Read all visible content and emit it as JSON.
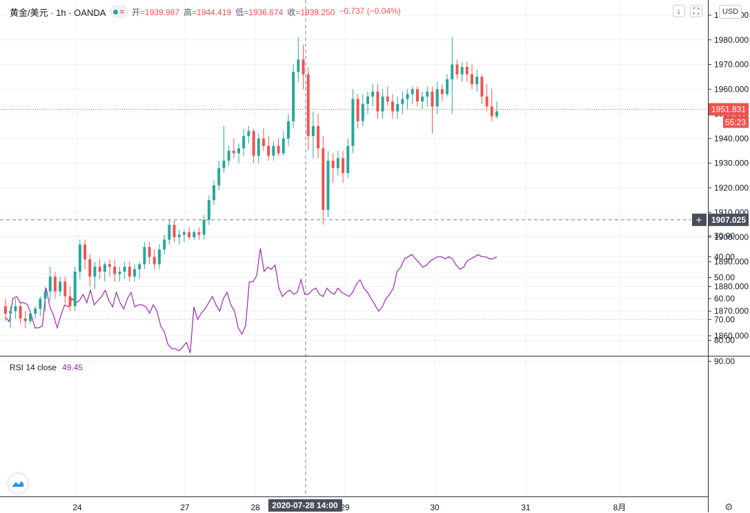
{
  "header": {
    "symbol": "黄金/美元 · 1h · OANDA",
    "open_label": "开",
    "open": "1939.987",
    "high_label": "高",
    "high": "1944.419",
    "low_label": "低",
    "low": "1936.674",
    "close_label": "收",
    "close": "1939.250",
    "change": "−0.737 (−0.04%)",
    "currency": "USD"
  },
  "price_tags": {
    "last": "1951.831",
    "countdown": "55:23",
    "crosshair": "1907.025"
  },
  "crosshair_time": "2020-07-28  14:00",
  "rsi": {
    "label": "RSI 14 close",
    "value": "49.45"
  },
  "icons": [
    "down-arrow-icon",
    "fullscreen-icon",
    "wave-icon",
    "tradingview-logo-icon",
    "gear-icon",
    "plus-icon"
  ],
  "colors": {
    "up": "#26a69a",
    "down": "#ef5350",
    "rsi_line": "#9c27b0",
    "rsi_band": "#f3e6fc"
  },
  "chart_data": [
    {
      "type": "candlestick",
      "title": "",
      "ylim": [
        1852,
        1990
      ],
      "y_ticks": [
        "1860.000",
        "1870.000",
        "1880.000",
        "1890.000",
        "1900.000",
        "1910.000",
        "1920.000",
        "1930.000",
        "1940.000",
        "1950.000",
        "1960.000",
        "1970.000",
        "1980.000",
        "1990.000"
      ],
      "x_ticks": [
        "24",
        "27",
        "28",
        "29",
        "30",
        "31",
        "8月"
      ],
      "ohlc": [
        [
          1872,
          1875,
          1866,
          1869
        ],
        [
          1869,
          1872,
          1863,
          1870
        ],
        [
          1870,
          1875,
          1867,
          1872
        ],
        [
          1872,
          1874,
          1865,
          1867
        ],
        [
          1867,
          1870,
          1863,
          1866
        ],
        [
          1866,
          1870,
          1865,
          1869
        ],
        [
          1869,
          1872,
          1867,
          1871
        ],
        [
          1871,
          1876,
          1868,
          1875
        ],
        [
          1875,
          1880,
          1870,
          1878
        ],
        [
          1878,
          1888,
          1874,
          1884
        ],
        [
          1884,
          1886,
          1875,
          1878
        ],
        [
          1878,
          1884,
          1876,
          1882
        ],
        [
          1882,
          1884,
          1873,
          1876
        ],
        [
          1876,
          1880,
          1870,
          1872
        ],
        [
          1872,
          1888,
          1870,
          1886
        ],
        [
          1886,
          1899,
          1883,
          1897
        ],
        [
          1897,
          1899,
          1887,
          1891
        ],
        [
          1891,
          1893,
          1880,
          1884
        ],
        [
          1884,
          1890,
          1879,
          1888
        ],
        [
          1888,
          1891,
          1883,
          1886
        ],
        [
          1886,
          1890,
          1882,
          1889
        ],
        [
          1889,
          1891,
          1884,
          1888
        ],
        [
          1888,
          1891,
          1882,
          1885
        ],
        [
          1885,
          1888,
          1882,
          1886
        ],
        [
          1886,
          1890,
          1883,
          1888
        ],
        [
          1888,
          1890,
          1882,
          1884
        ],
        [
          1884,
          1889,
          1882,
          1887
        ],
        [
          1887,
          1890,
          1883,
          1889
        ],
        [
          1889,
          1898,
          1887,
          1896
        ],
        [
          1896,
          1898,
          1889,
          1892
        ],
        [
          1892,
          1895,
          1887,
          1889
        ],
        [
          1889,
          1897,
          1887,
          1895
        ],
        [
          1895,
          1901,
          1893,
          1899
        ],
        [
          1899,
          1907,
          1897,
          1905
        ],
        [
          1905,
          1907,
          1898,
          1900
        ],
        [
          1900,
          1903,
          1897,
          1901
        ],
        [
          1901,
          1903,
          1898,
          1902
        ],
        [
          1902,
          1904,
          1899,
          1900
        ],
        [
          1900,
          1903,
          1899,
          1902
        ],
        [
          1902,
          1904,
          1899,
          1901
        ],
        [
          1901,
          1909,
          1899,
          1907
        ],
        [
          1907,
          1917,
          1905,
          1915
        ],
        [
          1915,
          1923,
          1913,
          1921
        ],
        [
          1921,
          1931,
          1919,
          1928
        ],
        [
          1928,
          1945,
          1926,
          1931
        ],
        [
          1931,
          1937,
          1929,
          1935
        ],
        [
          1935,
          1940,
          1932,
          1934
        ],
        [
          1934,
          1938,
          1930,
          1936
        ],
        [
          1936,
          1944,
          1933,
          1941
        ],
        [
          1941,
          1945,
          1938,
          1943
        ],
        [
          1943,
          1944,
          1930,
          1933
        ],
        [
          1933,
          1942,
          1930,
          1940
        ],
        [
          1940,
          1944,
          1935,
          1937
        ],
        [
          1937,
          1941,
          1931,
          1933
        ],
        [
          1933,
          1939,
          1931,
          1937
        ],
        [
          1937,
          1940,
          1933,
          1934
        ],
        [
          1934,
          1943,
          1933,
          1940
        ],
        [
          1940,
          1950,
          1937,
          1947
        ],
        [
          1947,
          1970,
          1944,
          1967
        ],
        [
          1967,
          1981,
          1963,
          1972
        ],
        [
          1972,
          1978,
          1960,
          1966
        ],
        [
          1966,
          1969,
          1935,
          1941
        ],
        [
          1941,
          1951,
          1932,
          1945
        ],
        [
          1945,
          1950,
          1932,
          1936
        ],
        [
          1936,
          1941,
          1905,
          1911
        ],
        [
          1911,
          1935,
          1908,
          1931
        ],
        [
          1931,
          1934,
          1922,
          1928
        ],
        [
          1928,
          1935,
          1925,
          1932
        ],
        [
          1932,
          1935,
          1922,
          1926
        ],
        [
          1926,
          1940,
          1924,
          1937
        ],
        [
          1937,
          1960,
          1934,
          1956
        ],
        [
          1956,
          1958,
          1944,
          1947
        ],
        [
          1947,
          1958,
          1945,
          1954
        ],
        [
          1954,
          1959,
          1950,
          1957
        ],
        [
          1957,
          1962,
          1953,
          1959
        ],
        [
          1959,
          1962,
          1948,
          1951
        ],
        [
          1951,
          1960,
          1948,
          1957
        ],
        [
          1957,
          1961,
          1953,
          1955
        ],
        [
          1955,
          1958,
          1948,
          1951
        ],
        [
          1951,
          1957,
          1948,
          1954
        ],
        [
          1954,
          1959,
          1950,
          1956
        ],
        [
          1956,
          1960,
          1952,
          1958
        ],
        [
          1958,
          1961,
          1954,
          1960
        ],
        [
          1960,
          1961,
          1953,
          1955
        ],
        [
          1955,
          1959,
          1952,
          1957
        ],
        [
          1957,
          1961,
          1953,
          1959
        ],
        [
          1959,
          1961,
          1942,
          1953
        ],
        [
          1953,
          1963,
          1950,
          1960
        ],
        [
          1960,
          1962,
          1955,
          1958
        ],
        [
          1958,
          1966,
          1957,
          1964
        ],
        [
          1964,
          1981,
          1950,
          1970
        ],
        [
          1970,
          1972,
          1964,
          1966
        ],
        [
          1966,
          1971,
          1963,
          1969
        ],
        [
          1969,
          1971,
          1963,
          1966
        ],
        [
          1966,
          1970,
          1960,
          1962
        ],
        [
          1962,
          1968,
          1959,
          1965
        ],
        [
          1965,
          1966,
          1954,
          1957
        ],
        [
          1957,
          1962,
          1951,
          1953
        ],
        [
          1953,
          1960,
          1947,
          1949
        ],
        [
          1949,
          1955,
          1948,
          1951
        ]
      ]
    },
    {
      "type": "line",
      "title": "",
      "ylim": [
        26,
        91
      ],
      "y_ticks": [
        "30.00",
        "40.00",
        "50.00",
        "60.00",
        "70.00",
        "80.00",
        "90.00"
      ],
      "series": [
        {
          "name": "",
          "values": [
            69,
            71,
            60,
            59,
            62,
            62,
            63,
            68,
            74,
            74,
            73,
            55,
            64,
            68,
            74,
            68,
            63,
            64,
            60,
            62,
            61,
            58,
            62,
            56,
            63,
            61,
            59,
            56,
            61,
            64,
            57,
            62,
            65,
            60,
            57,
            64,
            63,
            63,
            64,
            67,
            63,
            66,
            73,
            76,
            82,
            84,
            84,
            85,
            83,
            81,
            86,
            64,
            70,
            67,
            65,
            62,
            59,
            63,
            66,
            60,
            57,
            63,
            66,
            74,
            77,
            73,
            52,
            52,
            49,
            36,
            47,
            45,
            46,
            44,
            55,
            59,
            57,
            56,
            58,
            57,
            51,
            58,
            58,
            56,
            55,
            58,
            59,
            55,
            57,
            58,
            55,
            57,
            58,
            59,
            57,
            53,
            51,
            55,
            57,
            60,
            63,
            66,
            64,
            60,
            58,
            55,
            47,
            45,
            41,
            40,
            39,
            41,
            43,
            45,
            44,
            42,
            41,
            40,
            40,
            41,
            40,
            41,
            44,
            46,
            45,
            42,
            41,
            40,
            39,
            40,
            40,
            41,
            41,
            40
          ]
        }
      ],
      "bands": [
        30,
        70
      ]
    }
  ]
}
